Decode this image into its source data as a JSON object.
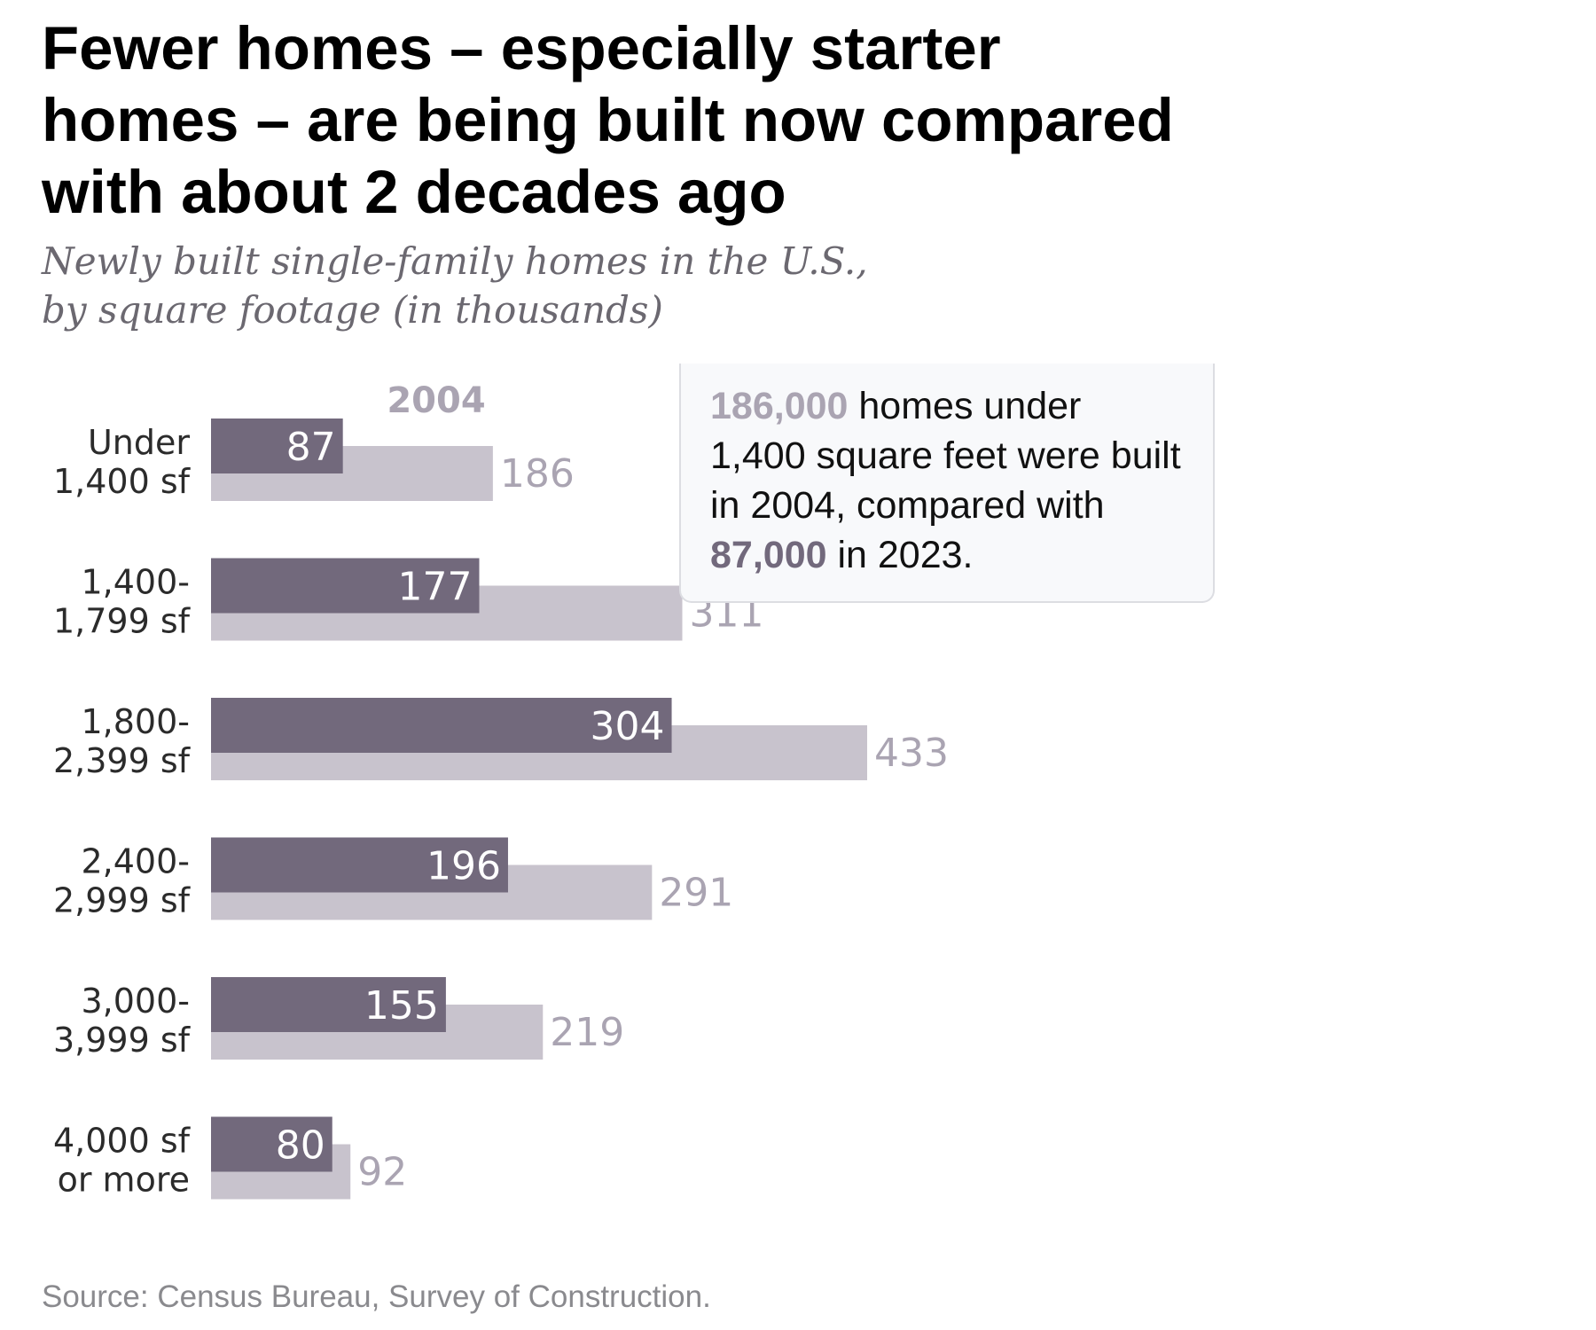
{
  "title": "Fewer homes – especially starter\nhomes – are being built now compared\nwith about 2 decades ago",
  "subtitle": "Newly built single-family homes in the U.S.,\nby square footage (in thousands)",
  "callout": {
    "value_2004": "186,000",
    "text_1": " homes under 1,400 square feet were built in 2004, compared with ",
    "value_2023": "87,000",
    "text_2": " in 2023."
  },
  "source": "Source: Census Bureau, Survey of Construction.",
  "colors": {
    "series_2023": "#72697c",
    "series_2004": "#c8c3cd",
    "label_2004": "#aaa4b2",
    "label_2023_text": "#ffffff"
  },
  "chart_data": {
    "type": "bar",
    "orientation": "horizontal",
    "categories": [
      [
        "Under",
        "1,400 sf"
      ],
      [
        "1,400-",
        "1,799 sf"
      ],
      [
        "1,800-",
        "2,399 sf"
      ],
      [
        "2,400-",
        "2,999 sf"
      ],
      [
        "3,000-",
        "3,999 sf"
      ],
      [
        "4,000 sf",
        "or more"
      ]
    ],
    "series": [
      {
        "name": "2004",
        "values": [
          186,
          311,
          433,
          291,
          219,
          92
        ]
      },
      {
        "name": "",
        "values": [
          87,
          177,
          304,
          196,
          155,
          80
        ]
      }
    ],
    "title": "",
    "xlabel": "",
    "ylabel": "",
    "xlim": [
      0,
      440
    ]
  }
}
